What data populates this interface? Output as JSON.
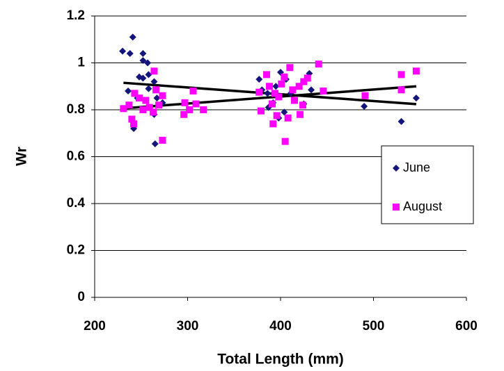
{
  "chart_data": {
    "type": "scatter",
    "x_label": "Total Length (mm)",
    "y_label": "Wr",
    "xlim": [
      200,
      600
    ],
    "ylim": [
      0,
      1.2
    ],
    "xticks": [
      200,
      300,
      400,
      500,
      600
    ],
    "yticks": [
      0,
      0.2,
      0.4,
      0.6,
      0.8,
      1,
      1.2
    ],
    "grid": true,
    "legend": "right",
    "series": [
      {
        "name": "June",
        "color": "#14147a",
        "marker": "diamond",
        "x": [
          230,
          241,
          238,
          252,
          252,
          257,
          248,
          252,
          258,
          236,
          242,
          265,
          264,
          273,
          258,
          246,
          264,
          267,
          377,
          380,
          386,
          392,
          400,
          406,
          411,
          395,
          387,
          404,
          425,
          431,
          433,
          398,
          490,
          530,
          546
        ],
        "values": [
          1.05,
          1.11,
          1.04,
          1.04,
          1.01,
          1.0,
          0.94,
          0.935,
          0.95,
          0.88,
          0.72,
          0.655,
          0.78,
          0.83,
          0.89,
          0.85,
          0.92,
          0.85,
          0.93,
          0.885,
          0.87,
          0.83,
          0.96,
          0.93,
          0.87,
          0.9,
          0.81,
          0.79,
          0.825,
          0.955,
          0.885,
          0.765,
          0.815,
          0.75,
          0.85
        ]
      },
      {
        "name": "August",
        "color": "#ff00ff",
        "marker": "square",
        "x": [
          231,
          237,
          240,
          242,
          243,
          248,
          252,
          255,
          259,
          263,
          264,
          266,
          269,
          273,
          273,
          296,
          297,
          302,
          306,
          309,
          317,
          377,
          379,
          385,
          388,
          391,
          392,
          396,
          398,
          401,
          404,
          405,
          408,
          410,
          413,
          415,
          420,
          421,
          425,
          429,
          441,
          446,
          491,
          530,
          530,
          546,
          424,
          394
        ],
        "values": [
          0.805,
          0.82,
          0.76,
          0.74,
          0.87,
          0.85,
          0.8,
          0.84,
          0.81,
          0.79,
          0.965,
          0.885,
          0.82,
          0.86,
          0.67,
          0.78,
          0.83,
          0.8,
          0.88,
          0.825,
          0.8,
          0.875,
          0.795,
          0.95,
          0.9,
          0.825,
          0.74,
          0.775,
          0.855,
          0.91,
          0.94,
          0.665,
          0.765,
          0.98,
          0.885,
          0.84,
          0.9,
          0.78,
          0.92,
          0.935,
          0.995,
          0.88,
          0.86,
          0.95,
          0.885,
          0.965,
          0.82,
          0.87
        ]
      }
    ],
    "trend_lines": [
      {
        "color": "#000000",
        "x": [
          231,
          546
        ],
        "values": [
          0.915,
          0.824
        ]
      },
      {
        "color": "#000000",
        "x": [
          231,
          546
        ],
        "values": [
          0.806,
          0.9
        ]
      }
    ]
  }
}
